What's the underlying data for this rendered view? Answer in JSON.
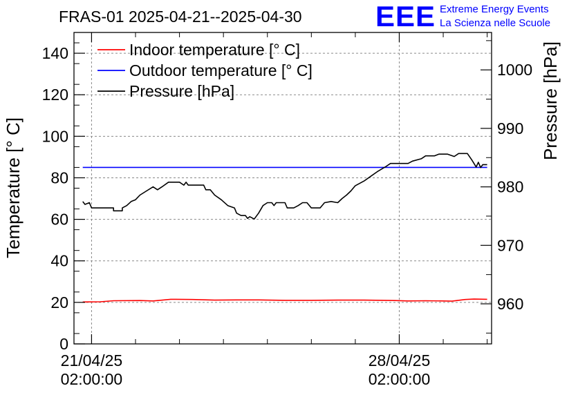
{
  "chart_data": {
    "type": "line",
    "title": "FRAS-01 2025-04-21--2025-04-30",
    "logo": {
      "text": "EEE",
      "line1": "Extreme Energy Events",
      "line2": "La Scienza nelle Scuole",
      "color": "#0000ff"
    },
    "x_axis": {
      "unit": "days since 2025-04-21 00:00",
      "range": [
        -0.4,
        9.1
      ],
      "tick_labels": [
        {
          "at": 0,
          "date": "21/04/25",
          "time": "02:00:00"
        },
        {
          "at": 7,
          "date": "28/04/25",
          "time": "02:00:00"
        }
      ],
      "grid": true
    },
    "y_left": {
      "label": "Temperature [° C]",
      "range": [
        0,
        150
      ],
      "ticks": [
        "0",
        "20",
        "40",
        "60",
        "80",
        "100",
        "120",
        "140"
      ]
    },
    "y_right": {
      "label": "Pressure [hPa]",
      "range": [
        953.15,
        1006.4
      ],
      "ticks": [
        "960",
        "970",
        "980",
        "990",
        "1000"
      ]
    },
    "legend": {
      "placement": "top-left",
      "entries": [
        {
          "name": "Indoor temperature [° C]",
          "color": "#ff0000"
        },
        {
          "name": "Outdoor temperature [° C]",
          "color": "#0000ff"
        },
        {
          "name": "Pressure [hPa]",
          "color": "#000000"
        }
      ]
    },
    "series": [
      {
        "name": "Indoor temperature [° C]",
        "axis": "left",
        "color": "#ff0000",
        "points": [
          [
            -0.2,
            20.2
          ],
          [
            0.2,
            20.3
          ],
          [
            0.5,
            20.8
          ],
          [
            1.1,
            20.9
          ],
          [
            1.4,
            20.7
          ],
          [
            1.8,
            21.5
          ],
          [
            2.3,
            21.4
          ],
          [
            2.8,
            21.1
          ],
          [
            3.3,
            21.2
          ],
          [
            3.8,
            21.2
          ],
          [
            4.4,
            21.0
          ],
          [
            5.0,
            21.0
          ],
          [
            5.6,
            21.1
          ],
          [
            6.2,
            21.1
          ],
          [
            6.9,
            20.9
          ],
          [
            7.2,
            20.7
          ],
          [
            7.6,
            20.8
          ],
          [
            8.0,
            20.7
          ],
          [
            8.2,
            20.6
          ],
          [
            8.5,
            21.4
          ],
          [
            8.7,
            21.6
          ],
          [
            9.0,
            21.5
          ]
        ]
      },
      {
        "name": "Outdoor temperature [° C]",
        "axis": "left",
        "color": "#0000ff",
        "points": [
          [
            -0.2,
            85
          ],
          [
            9.0,
            85
          ]
        ]
      },
      {
        "name": "Pressure [hPa]",
        "axis": "right",
        "color": "#000000",
        "points": [
          [
            -0.2,
            977.5
          ],
          [
            -0.15,
            977.0
          ],
          [
            -0.05,
            977.3
          ],
          [
            0.0,
            976.4
          ],
          [
            0.5,
            976.4
          ],
          [
            0.5,
            975.9
          ],
          [
            0.7,
            975.9
          ],
          [
            0.7,
            976.4
          ],
          [
            0.8,
            976.8
          ],
          [
            0.9,
            977.5
          ],
          [
            1.0,
            977.8
          ],
          [
            1.1,
            978.6
          ],
          [
            1.25,
            979.3
          ],
          [
            1.4,
            980.0
          ],
          [
            1.5,
            979.5
          ],
          [
            1.6,
            980.0
          ],
          [
            1.75,
            980.8
          ],
          [
            2.0,
            980.8
          ],
          [
            2.1,
            980.3
          ],
          [
            2.15,
            980.8
          ],
          [
            2.2,
            980.3
          ],
          [
            2.55,
            980.3
          ],
          [
            2.6,
            979.5
          ],
          [
            2.7,
            979.5
          ],
          [
            2.8,
            978.6
          ],
          [
            2.95,
            977.8
          ],
          [
            3.1,
            976.8
          ],
          [
            3.25,
            976.4
          ],
          [
            3.3,
            975.5
          ],
          [
            3.4,
            975.1
          ],
          [
            3.5,
            975.1
          ],
          [
            3.55,
            974.6
          ],
          [
            3.6,
            974.9
          ],
          [
            3.7,
            974.5
          ],
          [
            3.8,
            975.5
          ],
          [
            3.9,
            976.8
          ],
          [
            4.0,
            977.3
          ],
          [
            4.1,
            977.3
          ],
          [
            4.15,
            976.8
          ],
          [
            4.2,
            977.3
          ],
          [
            4.4,
            977.3
          ],
          [
            4.45,
            976.4
          ],
          [
            4.6,
            976.4
          ],
          [
            4.7,
            976.8
          ],
          [
            4.8,
            977.3
          ],
          [
            4.9,
            977.3
          ],
          [
            5.0,
            976.4
          ],
          [
            5.2,
            976.4
          ],
          [
            5.3,
            977.3
          ],
          [
            5.45,
            977.5
          ],
          [
            5.6,
            977.3
          ],
          [
            5.7,
            978.0
          ],
          [
            5.8,
            978.6
          ],
          [
            5.9,
            979.3
          ],
          [
            6.0,
            980.2
          ],
          [
            6.2,
            981.0
          ],
          [
            6.35,
            981.8
          ],
          [
            6.5,
            982.6
          ],
          [
            6.7,
            983.5
          ],
          [
            6.8,
            984.0
          ],
          [
            7.2,
            984.0
          ],
          [
            7.3,
            984.4
          ],
          [
            7.5,
            984.8
          ],
          [
            7.6,
            985.3
          ],
          [
            7.8,
            985.3
          ],
          [
            7.9,
            985.6
          ],
          [
            8.1,
            985.6
          ],
          [
            8.25,
            985.2
          ],
          [
            8.35,
            985.7
          ],
          [
            8.55,
            985.7
          ],
          [
            8.65,
            984.6
          ],
          [
            8.75,
            983.4
          ],
          [
            8.8,
            984.2
          ],
          [
            8.85,
            983.3
          ],
          [
            8.9,
            983.8
          ],
          [
            9.0,
            983.8
          ]
        ]
      }
    ]
  }
}
